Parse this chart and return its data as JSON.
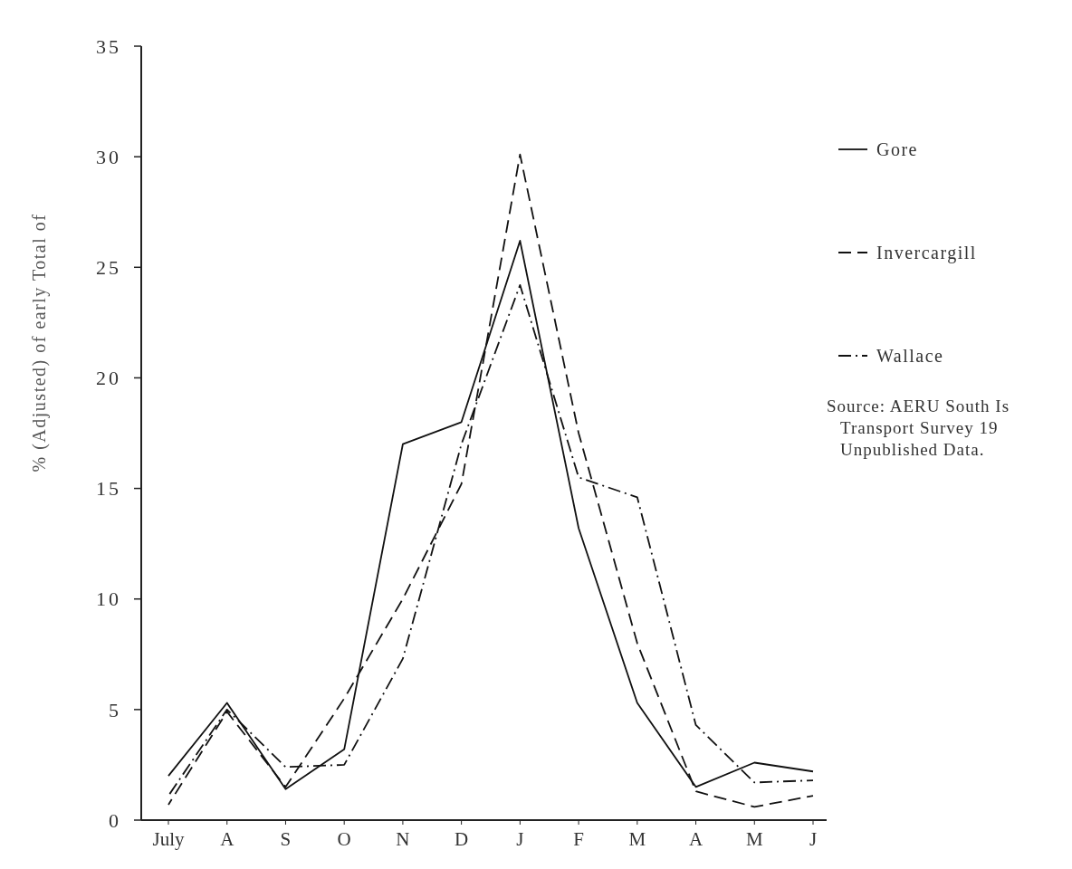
{
  "chart_data": {
    "type": "line",
    "ylabel": "% (Adjusted) of  early Total of",
    "categories": [
      "July",
      "A",
      "S",
      "O",
      "N",
      "D",
      "J",
      "F",
      "M",
      "A",
      "M",
      "J"
    ],
    "series": [
      {
        "name": "Gore",
        "color": "#111111",
        "line_style": "solid",
        "values": [
          2.0,
          5.3,
          1.4,
          3.2,
          17.0,
          18.0,
          26.2,
          13.2,
          5.3,
          1.5,
          2.6,
          2.2
        ]
      },
      {
        "name": "Invercargill",
        "color": "#111111",
        "line_style": "dashed",
        "values": [
          0.7,
          4.9,
          1.5,
          5.5,
          10.0,
          15.2,
          30.1,
          17.5,
          8.0,
          1.3,
          0.6,
          1.1
        ]
      },
      {
        "name": "Wallace",
        "color": "#111111",
        "line_style": "dashdot",
        "values": [
          1.1,
          5.0,
          2.4,
          2.5,
          7.3,
          17.0,
          24.2,
          15.5,
          14.6,
          4.3,
          1.7,
          1.8
        ]
      }
    ],
    "ylim": [
      0,
      35
    ],
    "yticks": [
      0,
      5,
      10,
      15,
      20,
      25,
      30,
      35
    ],
    "grid": false,
    "legend": "right",
    "annotations": [
      "Source:  AERU South Is Transport Survey 19 Unpublished Data."
    ]
  }
}
